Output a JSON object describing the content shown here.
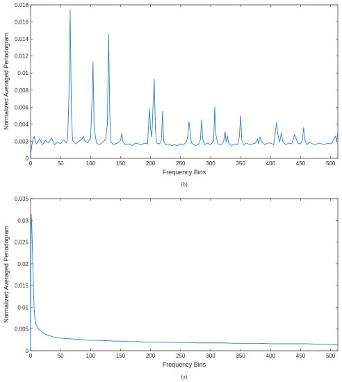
{
  "chart_data": [
    {
      "type": "line",
      "panel_caption": "(b)",
      "xlabel": "Frequency Bins",
      "ylabel": "Normalized Averaged Periodogram",
      "xlim": [
        0,
        512
      ],
      "ylim": [
        0,
        0.018
      ],
      "xticks": [
        0,
        50,
        100,
        150,
        200,
        250,
        300,
        350,
        400,
        450,
        500
      ],
      "yticks": [
        0,
        0.002,
        0.004,
        0.006,
        0.008,
        0.01,
        0.012,
        0.014,
        0.016,
        0.018
      ],
      "ytick_labels": [
        "0",
        "0.002",
        "0.004",
        "0.006",
        "0.008",
        "0.01",
        "0.012",
        "0.014",
        "0.016",
        "0.018"
      ],
      "grid": false,
      "line_color": "#2f7fbf",
      "baseline": 0.0018,
      "x": [
        0,
        2,
        4,
        6,
        8,
        10,
        15,
        20,
        25,
        30,
        35,
        40,
        45,
        50,
        55,
        60,
        62,
        64,
        66,
        68,
        70,
        75,
        80,
        85,
        88,
        90,
        95,
        100,
        102,
        104,
        106,
        110,
        115,
        120,
        125,
        128,
        130,
        132,
        134,
        138,
        145,
        150,
        152,
        154,
        158,
        165,
        170,
        175,
        180,
        185,
        190,
        195,
        198,
        200,
        202,
        204,
        206,
        208,
        210,
        215,
        218,
        220,
        222,
        225,
        230,
        235,
        240,
        245,
        250,
        255,
        260,
        262,
        264,
        268,
        275,
        280,
        283,
        285,
        287,
        290,
        295,
        300,
        305,
        307,
        309,
        312,
        318,
        322,
        324,
        326,
        328,
        330,
        335,
        340,
        345,
        348,
        350,
        352,
        355,
        360,
        365,
        370,
        375,
        378,
        380,
        382,
        385,
        390,
        395,
        400,
        405,
        408,
        410,
        412,
        415,
        418,
        420,
        425,
        430,
        435,
        438,
        440,
        445,
        450,
        453,
        455,
        457,
        460,
        465,
        470,
        475,
        480,
        485,
        490,
        495,
        500,
        503,
        505,
        508,
        510,
        512
      ],
      "y": [
        0.0004,
        0.0015,
        0.0022,
        0.0026,
        0.0019,
        0.0017,
        0.0023,
        0.0016,
        0.0021,
        0.0018,
        0.0024,
        0.0016,
        0.0019,
        0.0017,
        0.0022,
        0.0018,
        0.0028,
        0.0075,
        0.0174,
        0.0055,
        0.0021,
        0.0017,
        0.002,
        0.0022,
        0.0026,
        0.0021,
        0.0018,
        0.0024,
        0.006,
        0.0113,
        0.0034,
        0.0018,
        0.0016,
        0.0019,
        0.0022,
        0.004,
        0.0146,
        0.005,
        0.0019,
        0.0016,
        0.0018,
        0.0021,
        0.0029,
        0.0019,
        0.0016,
        0.0017,
        0.0015,
        0.0018,
        0.0017,
        0.0016,
        0.0018,
        0.0017,
        0.0058,
        0.0035,
        0.0025,
        0.006,
        0.0093,
        0.0035,
        0.0018,
        0.0017,
        0.0022,
        0.0055,
        0.002,
        0.0016,
        0.0017,
        0.0015,
        0.0016,
        0.0015,
        0.0017,
        0.0016,
        0.002,
        0.0027,
        0.0043,
        0.0018,
        0.0015,
        0.0017,
        0.0022,
        0.0045,
        0.0022,
        0.0016,
        0.0018,
        0.0016,
        0.002,
        0.006,
        0.0027,
        0.0017,
        0.0016,
        0.0021,
        0.0031,
        0.0019,
        0.0026,
        0.0018,
        0.0015,
        0.0017,
        0.0016,
        0.0026,
        0.005,
        0.0021,
        0.0016,
        0.0018,
        0.0016,
        0.0017,
        0.0018,
        0.0023,
        0.0017,
        0.0025,
        0.002,
        0.0016,
        0.0018,
        0.0018,
        0.0016,
        0.0032,
        0.0042,
        0.0028,
        0.0019,
        0.003,
        0.002,
        0.0016,
        0.0018,
        0.0017,
        0.0023,
        0.0028,
        0.0018,
        0.0017,
        0.0022,
        0.0036,
        0.0022,
        0.0016,
        0.0019,
        0.0017,
        0.0016,
        0.0018,
        0.0017,
        0.0016,
        0.0018,
        0.0017,
        0.0019,
        0.0022,
        0.0026,
        0.002,
        0.0032
      ]
    },
    {
      "type": "line",
      "panel_caption": "(a)",
      "xlabel": "Frequency Bins",
      "ylabel": "Normalized Averaged Periodogram",
      "xlim": [
        0,
        512
      ],
      "ylim": [
        0,
        0.035
      ],
      "xticks": [
        0,
        50,
        100,
        150,
        200,
        250,
        300,
        350,
        400,
        450,
        500
      ],
      "yticks": [
        0,
        0.005,
        0.01,
        0.015,
        0.02,
        0.025,
        0.03,
        0.035
      ],
      "ytick_labels": [
        "0",
        "0.005",
        "0.01",
        "0.015",
        "0.02",
        "0.025",
        "0.03",
        "0.035"
      ],
      "grid": false,
      "line_color": "#2f7fbf",
      "x": [
        0,
        1,
        2,
        3,
        4,
        5,
        6,
        7,
        8,
        10,
        12,
        15,
        18,
        20,
        25,
        30,
        35,
        40,
        45,
        50,
        60,
        70,
        80,
        90,
        100,
        110,
        120,
        130,
        140,
        150,
        160,
        170,
        180,
        190,
        200,
        220,
        240,
        260,
        280,
        300,
        320,
        340,
        360,
        380,
        400,
        420,
        440,
        460,
        480,
        500,
        505,
        510,
        512
      ],
      "y": [
        0.0005,
        0.0315,
        0.029,
        0.024,
        0.018,
        0.013,
        0.0095,
        0.0078,
        0.0065,
        0.0058,
        0.0053,
        0.0048,
        0.0044,
        0.0042,
        0.0038,
        0.0035,
        0.0033,
        0.0031,
        0.003,
        0.0029,
        0.0028,
        0.0027,
        0.0026,
        0.0025,
        0.0024,
        0.0024,
        0.0023,
        0.0023,
        0.0022,
        0.0022,
        0.0021,
        0.0021,
        0.0021,
        0.002,
        0.002,
        0.002,
        0.0019,
        0.0019,
        0.0018,
        0.0018,
        0.0018,
        0.0017,
        0.0017,
        0.0017,
        0.0016,
        0.0016,
        0.0016,
        0.0016,
        0.0015,
        0.0015,
        0.0014,
        0.0014,
        0.0014
      ]
    }
  ]
}
